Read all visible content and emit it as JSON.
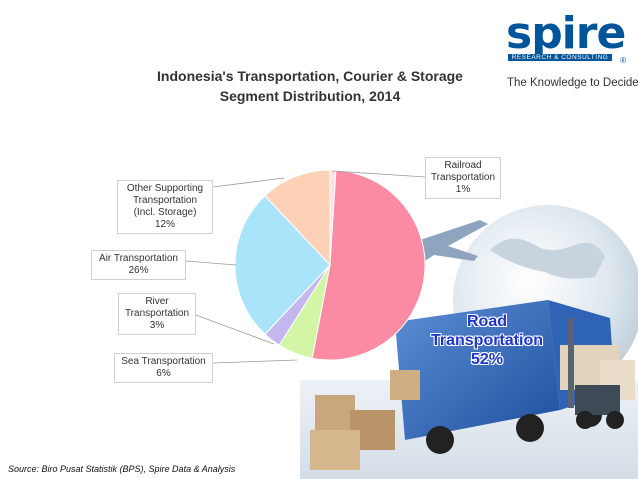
{
  "header": {
    "title_line1": "Indonesia's Transportation, Courier & Storage",
    "title_line2": "Segment Distribution, 2014"
  },
  "brand": {
    "logo_text": "spire",
    "logo_subtext": "RESEARCH & CONSULTING",
    "registered": "®",
    "tagline": "The Knowledge to Decide",
    "color": "#00549a"
  },
  "source": "Source: Biro Pusat Statistik (BPS), Spire Data & Analysis",
  "chart_data": {
    "type": "pie",
    "title": "Indonesia's Transportation, Courier & Storage Segment Distribution, 2014",
    "unit": "%",
    "slices": [
      {
        "name": "Railroad Transportation",
        "value": 1,
        "color": "#fde0e4"
      },
      {
        "name": "Road Transportation",
        "value": 52,
        "color": "#fb8aa3"
      },
      {
        "name": "Sea Transportation",
        "value": 6,
        "color": "#d2f5a6"
      },
      {
        "name": "River Transportation",
        "value": 3,
        "color": "#c4b7f0"
      },
      {
        "name": "Air Transportation",
        "value": 26,
        "color": "#a9e4fb"
      },
      {
        "name": "Other Supporting Transportation (Incl. Storage)",
        "value": 12,
        "color": "#fdd1b5"
      }
    ],
    "labels": {
      "railroad": {
        "line1": "Railroad",
        "line2": "Transportation",
        "pct": "1%"
      },
      "road": {
        "line1": "Road",
        "line2": "Transportation",
        "pct": "52%"
      },
      "sea": {
        "line1": "Sea Transportation",
        "pct": "6%"
      },
      "river": {
        "line1": "River",
        "line2": "Transportation",
        "pct": "3%"
      },
      "air": {
        "line1": "Air Transportation",
        "pct": "26%"
      },
      "other": {
        "line1": "Other Supporting",
        "line2": "Transportation",
        "line3": "(Incl. Storage)",
        "pct": "12%"
      }
    }
  }
}
